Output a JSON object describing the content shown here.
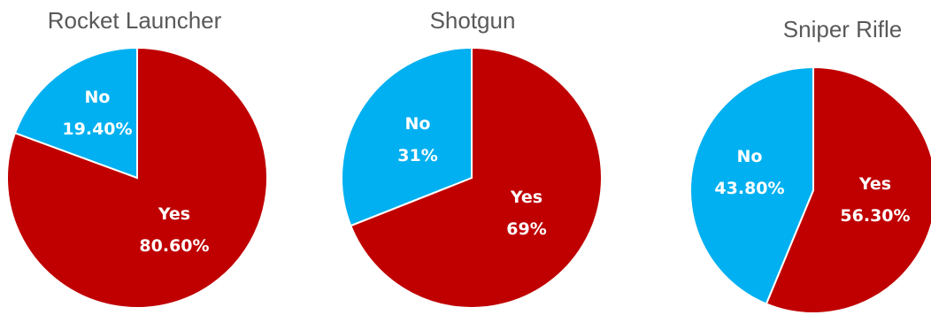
{
  "colors": {
    "yes": "#C00000",
    "no": "#00B0F0",
    "title": "#595959",
    "label": "#ffffff"
  },
  "chart_data": [
    {
      "type": "pie",
      "title": "Rocket Launcher",
      "slices": [
        {
          "label": "Yes",
          "value": 80.6,
          "value_text": "80.60%"
        },
        {
          "label": "No",
          "value": 19.4,
          "value_text": "19.40%"
        }
      ]
    },
    {
      "type": "pie",
      "title": "Shotgun",
      "slices": [
        {
          "label": "Yes",
          "value": 69,
          "value_text": "69%"
        },
        {
          "label": "No",
          "value": 31,
          "value_text": "31%"
        }
      ]
    },
    {
      "type": "pie",
      "title": "Sniper Rifle",
      "slices": [
        {
          "label": "Yes",
          "value": 56.3,
          "value_text": "56.30%"
        },
        {
          "label": "No",
          "value": 43.8,
          "value_text": "43.80%"
        }
      ]
    }
  ]
}
